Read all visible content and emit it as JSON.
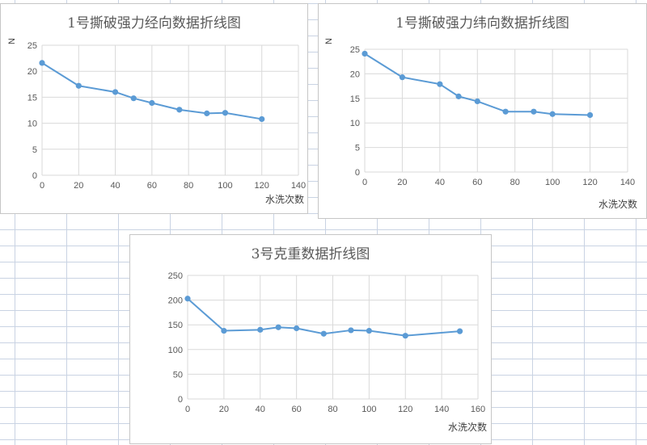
{
  "chart_data": [
    {
      "type": "line",
      "title": "1号撕破强力经向数据折线图",
      "xlabel": "水洗次数",
      "ylabel": "N",
      "xlim": [
        0,
        140
      ],
      "ylim": [
        0,
        25
      ],
      "xticks": [
        0,
        20,
        40,
        60,
        80,
        100,
        120,
        140
      ],
      "yticks": [
        0,
        5,
        10,
        15,
        20,
        25
      ],
      "grid": true,
      "color": "#5b9bd5",
      "series": [
        {
          "x": [
            0,
            20,
            40,
            50,
            60,
            75,
            90,
            100,
            120
          ],
          "y": [
            21.6,
            17.2,
            16.0,
            14.8,
            13.9,
            12.6,
            11.9,
            12.0,
            10.8
          ]
        }
      ]
    },
    {
      "type": "line",
      "title": "1号撕破强力纬向数据折线图",
      "xlabel": "水洗次数",
      "ylabel": "N",
      "xlim": [
        0,
        140
      ],
      "ylim": [
        0,
        25
      ],
      "xticks": [
        0,
        20,
        40,
        60,
        80,
        100,
        120,
        140
      ],
      "yticks": [
        0,
        5,
        10,
        15,
        20,
        25
      ],
      "grid": true,
      "color": "#5b9bd5",
      "series": [
        {
          "x": [
            0,
            20,
            40,
            50,
            60,
            75,
            90,
            100,
            120
          ],
          "y": [
            24.1,
            19.3,
            17.9,
            15.4,
            14.4,
            12.3,
            12.3,
            11.8,
            11.6
          ]
        }
      ]
    },
    {
      "type": "line",
      "title": "3号克重数据折线图",
      "xlabel": "水洗次数",
      "ylabel": "",
      "xlim": [
        0,
        160
      ],
      "ylim": [
        0,
        250
      ],
      "xticks": [
        0,
        20,
        40,
        60,
        80,
        100,
        120,
        140,
        160
      ],
      "yticks": [
        0,
        50,
        100,
        150,
        200,
        250
      ],
      "grid": true,
      "color": "#5b9bd5",
      "series": [
        {
          "x": [
            0,
            20,
            40,
            50,
            60,
            75,
            90,
            100,
            120,
            150
          ],
          "y": [
            203,
            138,
            140,
            145,
            143,
            132,
            139,
            138,
            128,
            137
          ]
        }
      ]
    }
  ]
}
